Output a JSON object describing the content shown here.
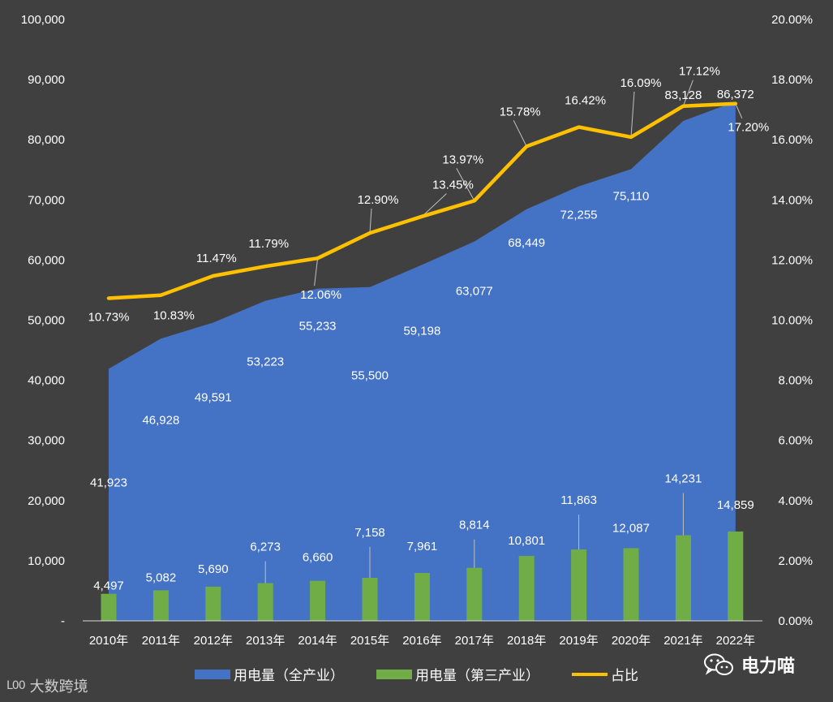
{
  "chart_data": {
    "type": "bar",
    "categories": [
      "2010年",
      "2011年",
      "2012年",
      "2013年",
      "2014年",
      "2015年",
      "2016年",
      "2017年",
      "2018年",
      "2019年",
      "2020年",
      "2021年",
      "2022年"
    ],
    "series": [
      {
        "name": "用电量（全产业）",
        "type": "area",
        "axis": "left",
        "values": [
          41923,
          46928,
          49591,
          53223,
          55233,
          55500,
          59198,
          63077,
          68449,
          72255,
          75110,
          83128,
          86372
        ],
        "labels": [
          "41,923",
          "46,928",
          "49,591",
          "53,223",
          "55,233",
          "55,500",
          "59,198",
          "63,077",
          "68,449",
          "72,255",
          "75,110",
          "83,128",
          "86,372"
        ]
      },
      {
        "name": "用电量（第三产业）",
        "type": "bar",
        "axis": "left",
        "values": [
          4497,
          5082,
          5690,
          6273,
          6660,
          7158,
          7961,
          8814,
          10801,
          11863,
          12087,
          14231,
          14859
        ],
        "labels": [
          "4,497",
          "5,082",
          "5,690",
          "6,273",
          "6,660",
          "7,158",
          "7,961",
          "8,814",
          "10,801",
          "11,863",
          "12,087",
          "14,231",
          "14,859"
        ]
      },
      {
        "name": "占比",
        "type": "line",
        "axis": "right",
        "values": [
          10.73,
          10.83,
          11.47,
          11.79,
          12.06,
          12.9,
          13.45,
          13.97,
          15.78,
          16.42,
          16.09,
          17.12,
          17.2
        ],
        "labels": [
          "10.73%",
          "10.83%",
          "11.47%",
          "11.79%",
          "12.06%",
          "12.90%",
          "13.45%",
          "13.97%",
          "15.78%",
          "16.42%",
          "16.09%",
          "17.12%",
          "17.20%"
        ]
      }
    ],
    "y_left": {
      "range": [
        0,
        100000
      ],
      "ticks": [
        "-",
        "10,000",
        "20,000",
        "30,000",
        "40,000",
        "50,000",
        "60,000",
        "70,000",
        "80,000",
        "90,000",
        "100,000"
      ]
    },
    "y_right": {
      "range": [
        0,
        20
      ],
      "ticks": [
        "0.00%",
        "2.00%",
        "4.00%",
        "6.00%",
        "8.00%",
        "10.00%",
        "12.00%",
        "14.00%",
        "16.00%",
        "18.00%",
        "20.00%"
      ]
    },
    "grid": false,
    "legend_position": "bottom",
    "colors": {
      "background": "#404040",
      "area": "#4472C4",
      "bar": "#70AD47",
      "line": "#FFC000",
      "text": "#FFFFFF",
      "leader": "#BFBFBF"
    }
  },
  "legend": {
    "items": [
      {
        "label": "用电量（全产业）",
        "color": "#4472C4",
        "kind": "rect"
      },
      {
        "label": "用电量（第三产业）",
        "color": "#70AD47",
        "kind": "rect"
      },
      {
        "label": "占比",
        "color": "#FFC000",
        "kind": "line"
      }
    ]
  },
  "watermark": {
    "left_text": "大数跨境",
    "left_logo": "L00",
    "right_text": "电力喵"
  }
}
